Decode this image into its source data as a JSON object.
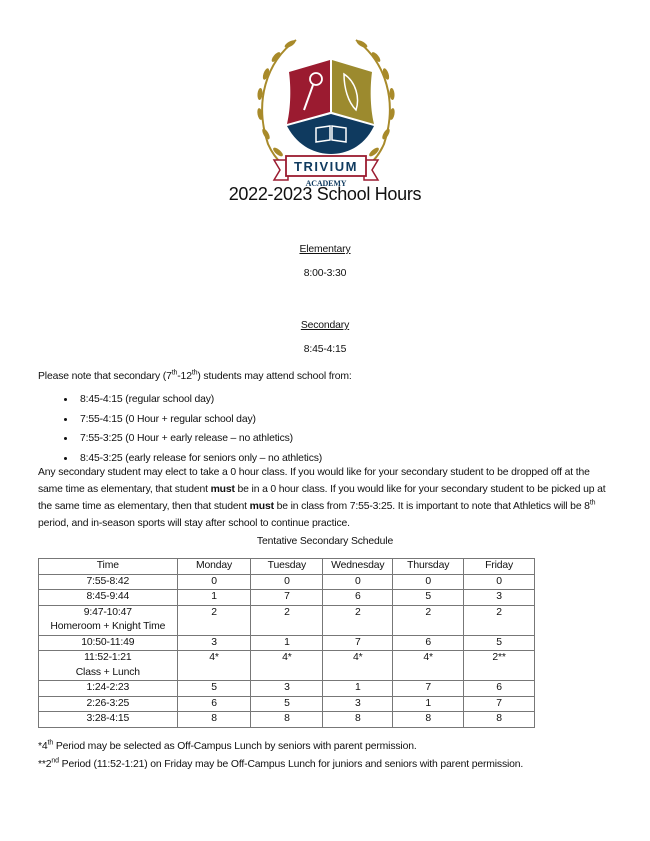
{
  "logo": {
    "name": "TRIVIUM",
    "sub": "ACADEMY",
    "colors": {
      "red": "#9b1b30",
      "gold": "#9c8a2e",
      "navy": "#0f3a5f",
      "laurel": "#a88a2a"
    }
  },
  "title": "2022-2023 School Hours",
  "elementary": {
    "heading": "Elementary",
    "hours": "8:00-3:30"
  },
  "secondary": {
    "heading": "Secondary",
    "hours": "8:45-4:15"
  },
  "note": {
    "pre": "Please note that secondary (7",
    "sup1": "th",
    "mid": "-12",
    "sup2": "th",
    "post": ") students may attend school from:"
  },
  "options": [
    "8:45-4:15 (regular school day)",
    "7:55-4:15 (0 Hour + regular school day)",
    "7:55-3:25 (0 Hour + early release – no athletics)",
    "8:45-3:25 (early release for seniors only – no athletics)"
  ],
  "paragraph": {
    "p1": "Any secondary student may elect to take a 0 hour class. If you would like for your secondary student to be dropped off at the same time as elementary, that student ",
    "b1": "must",
    "p2": " be in a 0 hour class.  If you would like for your secondary student to be picked up at the same time as elementary, then that student ",
    "b2": "must",
    "p3": " be in class from 7:55-3:25.  It is important to note that Athletics will be 8",
    "sup": "th",
    "p4": " period, and in-season sports will stay after school to continue practice."
  },
  "schedule": {
    "caption": "Tentative Secondary Schedule",
    "headers": [
      "Time",
      "Monday",
      "Tuesday",
      "Wednesday",
      "Thursday",
      "Friday"
    ],
    "rows": [
      {
        "time": "7:55-8:42",
        "sub": "",
        "cells": [
          "0",
          "0",
          "0",
          "0",
          "0"
        ]
      },
      {
        "time": "8:45-9:44",
        "sub": "",
        "cells": [
          "1",
          "7",
          "6",
          "5",
          "3"
        ]
      },
      {
        "time": "9:47-10:47",
        "sub": "Homeroom + Knight Time",
        "cells": [
          "2",
          "2",
          "2",
          "2",
          "2"
        ]
      },
      {
        "time": "10:50-11:49",
        "sub": "",
        "cells": [
          "3",
          "1",
          "7",
          "6",
          "5"
        ]
      },
      {
        "time": "11:52-1:21",
        "sub": "Class + Lunch",
        "cells": [
          "4*",
          "4*",
          "4*",
          "4*",
          "2**"
        ]
      },
      {
        "time": "1:24-2:23",
        "sub": "",
        "cells": [
          "5",
          "3",
          "1",
          "7",
          "6"
        ]
      },
      {
        "time": "2:26-3:25",
        "sub": "",
        "cells": [
          "6",
          "5",
          "3",
          "1",
          "7"
        ]
      },
      {
        "time": "3:28-4:15",
        "sub": "",
        "cells": [
          "8",
          "8",
          "8",
          "8",
          "8"
        ]
      }
    ]
  },
  "footnotes": [
    {
      "pre": "*4",
      "sup": "th",
      "post": " Period may be selected as Off-Campus Lunch by seniors with parent permission."
    },
    {
      "pre": "**2",
      "sup": "nd",
      "post": " Period (11:52-1:21) on Friday may be Off-Campus Lunch for juniors and seniors with parent permission."
    }
  ]
}
